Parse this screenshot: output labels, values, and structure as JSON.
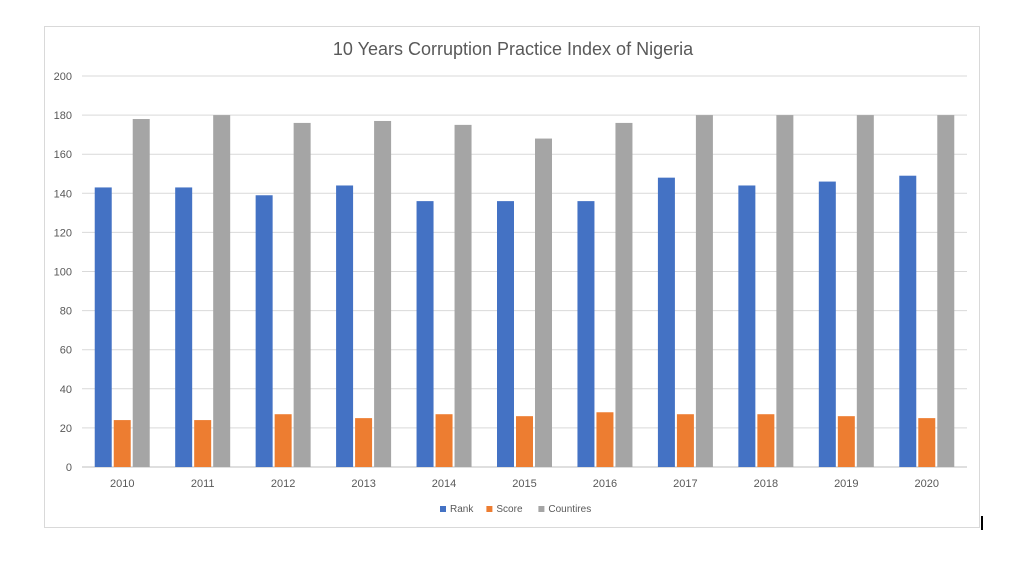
{
  "chart_data": {
    "type": "bar",
    "title": "10 Years Corruption Practice Index of Nigeria",
    "categories": [
      "2010",
      "2011",
      "2012",
      "2013",
      "2014",
      "2015",
      "2016",
      "2017",
      "2018",
      "2019",
      "2020"
    ],
    "series": [
      {
        "name": "Rank",
        "color": "#4472c4",
        "values": [
          143,
          143,
          139,
          144,
          136,
          136,
          136,
          148,
          144,
          146,
          149
        ]
      },
      {
        "name": "Score",
        "color": "#ed7d31",
        "values": [
          24,
          24,
          27,
          25,
          27,
          26,
          28,
          27,
          27,
          26,
          25
        ]
      },
      {
        "name": "Countires",
        "color": "#a5a5a5",
        "values": [
          178,
          180,
          176,
          177,
          175,
          168,
          176,
          180,
          180,
          180,
          180
        ]
      }
    ],
    "yticks": [
      "0",
      "20",
      "40",
      "60",
      "80",
      "100",
      "120",
      "140",
      "160",
      "180",
      "200"
    ],
    "ylim": [
      0,
      200
    ],
    "grid": true,
    "legend": "bottom"
  }
}
